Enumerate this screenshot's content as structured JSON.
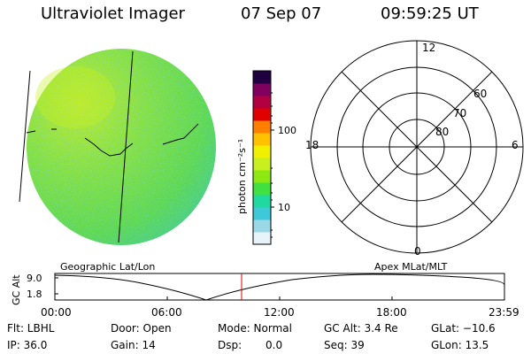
{
  "header": {
    "title": "Ultraviolet Imager",
    "date": "07 Sep 07",
    "time": "09:59:25 UT"
  },
  "colorbar": {
    "unit_label": "photon cm⁻²s⁻¹",
    "ticks": [
      "100",
      "10"
    ],
    "colors": [
      "#e8f4f8",
      "#9ad8e8",
      "#3ec8d8",
      "#20d8a0",
      "#40e040",
      "#8ce810",
      "#c8f020",
      "#f0f000",
      "#ffc000",
      "#ff8000",
      "#e00000",
      "#b00040",
      "#800060",
      "#200040"
    ]
  },
  "polar_grid": {
    "mlt_labels": [
      "12",
      "18",
      "6",
      "0"
    ],
    "lat_labels": [
      "60",
      "70",
      "80"
    ]
  },
  "orbit_plot": {
    "left_caption": "Geographic Lat/Lon",
    "right_caption": "Apex MLat/MLT",
    "ylabel": "GC Alt",
    "yticks": [
      "9.0",
      "1.8"
    ],
    "xticks": [
      "00:00",
      "06:00",
      "12:00",
      "18:00",
      "23:59"
    ]
  },
  "info": {
    "flt": "Flt: LBHL",
    "ip": "IP: 36.0",
    "door": "Door: Open",
    "gain": "Gain: 14",
    "mode": "Mode: Normal",
    "dsp": "Dsp:",
    "dsp_val": "0.0",
    "gcalt": "GC Alt: 3.4 Re",
    "seq": "Seq: 39",
    "glat": "GLat: −10.6",
    "glon": "GLon: 13.5"
  }
}
